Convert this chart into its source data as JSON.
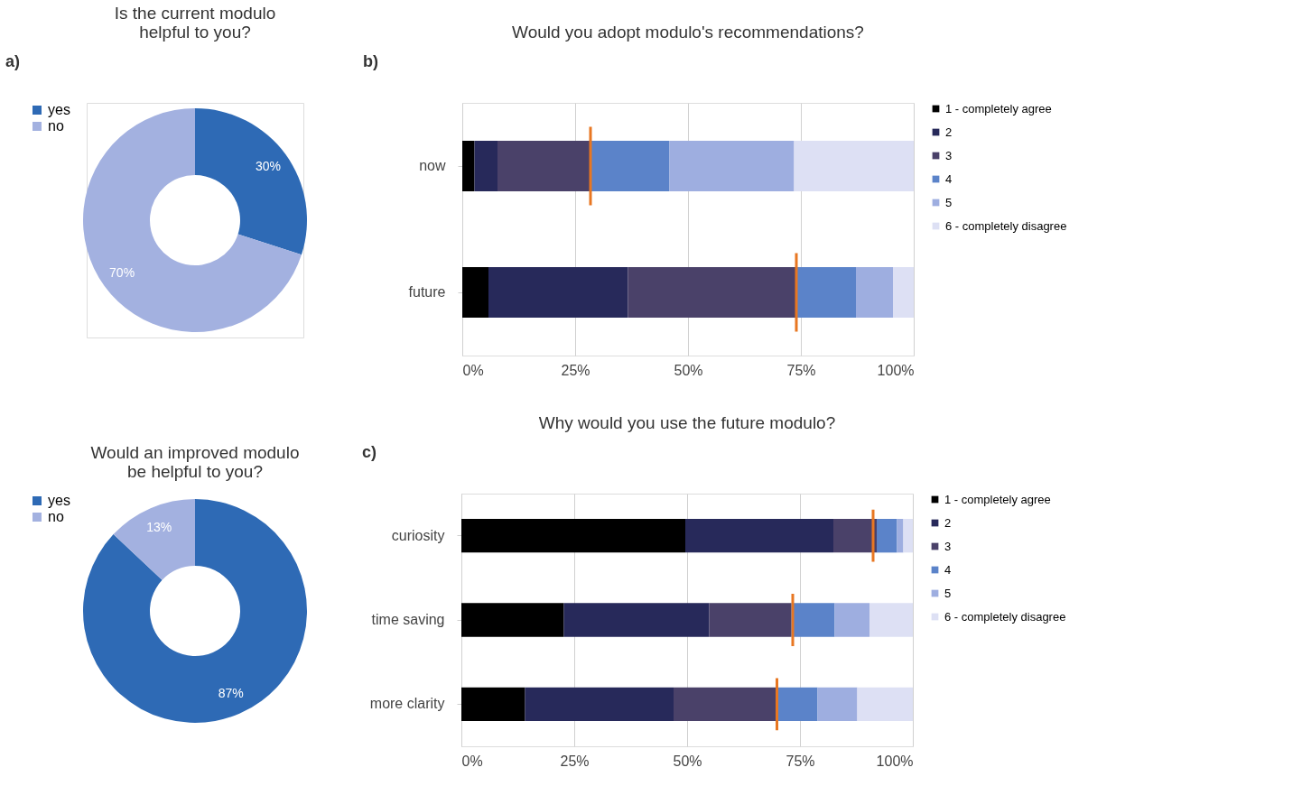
{
  "chart_data": [
    {
      "type": "donut",
      "title": "Is the current modulo\nhelpful to you?",
      "annotations": [
        "a)"
      ],
      "categories": [
        "yes",
        "no"
      ],
      "values": [
        30,
        70
      ],
      "colors": [
        "#2e6ab5",
        "#a3b1e0"
      ],
      "value_labels": [
        "30%",
        "70%"
      ],
      "legend": "left"
    },
    {
      "type": "bar",
      "orientation": "horizontal",
      "stacked": true,
      "title": "Would you adopt modulo's recommendations?",
      "annotations": [
        "b)"
      ],
      "categories": [
        "now",
        "future"
      ],
      "series": [
        {
          "name": "1 - completely agree",
          "color": "#000000",
          "values": [
            2.7,
            5.8
          ]
        },
        {
          "name": "2",
          "color": "#27295a",
          "values": [
            5.1,
            30.9
          ]
        },
        {
          "name": "3",
          "color": "#4a4169",
          "values": [
            20.6,
            37.3
          ]
        },
        {
          "name": "4",
          "color": "#5b83c9",
          "values": [
            17.5,
            13.2
          ]
        },
        {
          "name": "5",
          "color": "#9eaee0",
          "values": [
            27.6,
            8.2
          ]
        },
        {
          "name": "6 - completely disagree",
          "color": "#dde0f4",
          "values": [
            26.5,
            4.6
          ]
        }
      ],
      "ref_lines": [
        {
          "axis": "x",
          "value": 28.4,
          "color": "#e87722"
        },
        {
          "axis": "x",
          "value": 74.0,
          "color": "#e87722"
        }
      ],
      "xlim": [
        0,
        100
      ],
      "xticks": [
        {
          "value": 0,
          "label": "0%"
        },
        {
          "value": 25,
          "label": "25%"
        },
        {
          "value": 50,
          "label": "50%"
        },
        {
          "value": 75,
          "label": "75%"
        },
        {
          "value": 100,
          "label": "100%"
        }
      ],
      "grid": "x",
      "legend": "right"
    },
    {
      "type": "donut",
      "title": "Would an improved modulo\nbe helpful to you?",
      "categories": [
        "yes",
        "no"
      ],
      "values": [
        87,
        13
      ],
      "colors": [
        "#2e6ab5",
        "#a3b1e0"
      ],
      "value_labels": [
        "87%",
        "13%"
      ],
      "legend": "left"
    },
    {
      "type": "bar",
      "orientation": "horizontal",
      "stacked": true,
      "title": "Why would you use the future modulo?",
      "annotations": [
        "c)"
      ],
      "categories": [
        "curiosity",
        "time saving",
        "more clarity"
      ],
      "series": [
        {
          "name": "1 - completely agree",
          "color": "#000000",
          "values": [
            49.6,
            22.7,
            14.1
          ]
        },
        {
          "name": "2",
          "color": "#27295a",
          "values": [
            32.8,
            32.2,
            32.9
          ]
        },
        {
          "name": "3",
          "color": "#4a4169",
          "values": [
            9.6,
            18.1,
            22.9
          ]
        },
        {
          "name": "4",
          "color": "#5b83c9",
          "values": [
            4.5,
            9.7,
            9.0
          ]
        },
        {
          "name": "5",
          "color": "#9eaee0",
          "values": [
            1.4,
            7.7,
            8.8
          ]
        },
        {
          "name": "6 - completely disagree",
          "color": "#dde0f4",
          "values": [
            2.1,
            9.6,
            12.3
          ]
        }
      ],
      "ref_lines": [
        {
          "axis": "x",
          "value": 91.2,
          "color": "#e87722"
        },
        {
          "axis": "x",
          "value": 73.4,
          "color": "#e87722"
        },
        {
          "axis": "x",
          "value": 69.9,
          "color": "#e87722"
        }
      ],
      "xlim": [
        0,
        100
      ],
      "xticks": [
        {
          "value": 0,
          "label": "0%"
        },
        {
          "value": 25,
          "label": "25%"
        },
        {
          "value": 50,
          "label": "50%"
        },
        {
          "value": 75,
          "label": "75%"
        },
        {
          "value": 100,
          "label": "100%"
        }
      ],
      "grid": "x",
      "legend": "right"
    }
  ]
}
